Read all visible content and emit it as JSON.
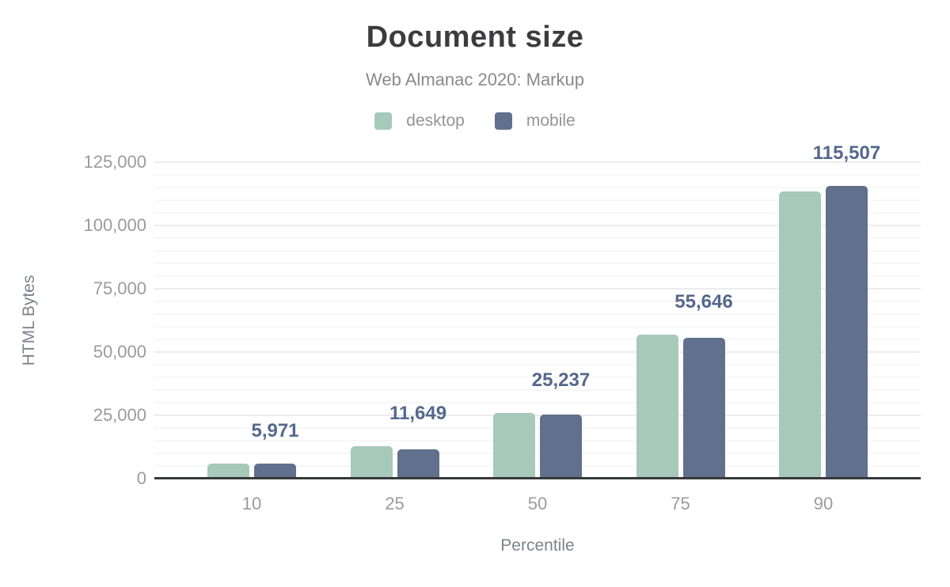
{
  "chart_data": {
    "type": "bar",
    "title": "Document size",
    "subtitle": "Web Almanac 2020: Markup",
    "xlabel": "Percentile",
    "ylabel": "HTML Bytes",
    "categories": [
      "10",
      "25",
      "50",
      "75",
      "90"
    ],
    "series": [
      {
        "name": "desktop",
        "color": "#a7c9b9",
        "values": [
          6000,
          12700,
          26000,
          57000,
          113400
        ]
      },
      {
        "name": "mobile",
        "color": "#60708d",
        "values": [
          5971,
          11649,
          25237,
          55646,
          115507
        ]
      }
    ],
    "data_labels": [
      "5,971",
      "11,649",
      "25,237",
      "55,646",
      "115,507"
    ],
    "data_label_series": "mobile",
    "ylim": [
      0,
      125000
    ],
    "yticks": [
      0,
      25000,
      50000,
      75000,
      100000,
      125000
    ],
    "ytick_labels": [
      "0",
      "25,000",
      "50,000",
      "75,000",
      "100,000",
      "125,000"
    ],
    "minor_grid_step": 5000,
    "grid": true,
    "legend_position": "top"
  },
  "colors": {
    "title": "#3c3c3e",
    "subtitle": "#8a8a8a",
    "tick_label": "#9b9b9b",
    "axis_title": "#7c838b",
    "data_label": "#54688c",
    "axis_line": "#37393b",
    "desktop": "#a7c9b9",
    "mobile": "#60708d"
  }
}
